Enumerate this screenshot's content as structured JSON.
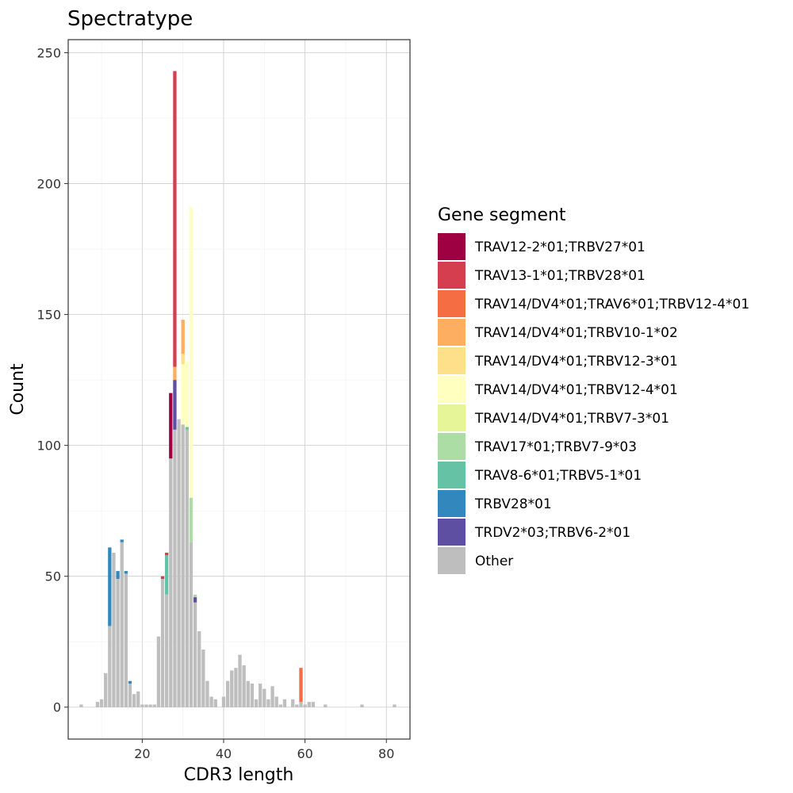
{
  "chart_data": {
    "type": "bar",
    "stacked": true,
    "title": "Spectratype",
    "xlabel": "CDR3 length",
    "ylabel": "Count",
    "xlim": [
      1.8,
      85.8
    ],
    "ylim": [
      -12.2,
      255
    ],
    "xticks": [
      20,
      40,
      60,
      80
    ],
    "yticks": [
      0,
      50,
      100,
      150,
      200,
      250
    ],
    "grid": true,
    "legend": {
      "title": "Gene segment",
      "position": "right",
      "entries": [
        {
          "name": "TRAV12-2*01;TRBV27*01",
          "color": "#9E0142"
        },
        {
          "name": "TRAV13-1*01;TRBV28*01",
          "color": "#D53E4F"
        },
        {
          "name": "TRAV14/DV4*01;TRAV6*01;TRBV12-4*01",
          "color": "#F46D43"
        },
        {
          "name": "TRAV14/DV4*01;TRBV10-1*02",
          "color": "#FDAE61"
        },
        {
          "name": "TRAV14/DV4*01;TRBV12-3*01",
          "color": "#FEE08B"
        },
        {
          "name": "TRAV14/DV4*01;TRBV12-4*01",
          "color": "#FFFFBF"
        },
        {
          "name": "TRAV14/DV4*01;TRBV7-3*01",
          "color": "#E6F598"
        },
        {
          "name": "TRAV17*01;TRBV7-9*03",
          "color": "#ABDDA4"
        },
        {
          "name": "TRAV8-6*01;TRBV5-1*01",
          "color": "#66C2A5"
        },
        {
          "name": "TRBV28*01",
          "color": "#3288BD"
        },
        {
          "name": "TRDV2*03;TRBV6-2*01",
          "color": "#5E4FA2"
        },
        {
          "name": "Other",
          "color": "#BEBEBE"
        }
      ]
    },
    "series_order": [
      "Other",
      "TRDV2*03;TRBV6-2*01",
      "TRBV28*01",
      "TRAV8-6*01;TRBV5-1*01",
      "TRAV17*01;TRBV7-9*03",
      "TRAV14/DV4*01;TRBV7-3*01",
      "TRAV14/DV4*01;TRBV12-4*01",
      "TRAV14/DV4*01;TRBV12-3*01",
      "TRAV14/DV4*01;TRBV10-1*02",
      "TRAV14/DV4*01;TRAV6*01;TRBV12-4*01",
      "TRAV13-1*01;TRBV28*01",
      "TRAV12-2*01;TRBV27*01"
    ],
    "bars": [
      {
        "x": 5,
        "segments": {
          "Other": 1
        }
      },
      {
        "x": 9,
        "segments": {
          "Other": 2
        }
      },
      {
        "x": 10,
        "segments": {
          "Other": 3
        }
      },
      {
        "x": 11,
        "segments": {
          "Other": 13
        }
      },
      {
        "x": 12,
        "segments": {
          "Other": 31,
          "TRBV28*01": 30
        }
      },
      {
        "x": 13,
        "segments": {
          "Other": 59
        }
      },
      {
        "x": 14,
        "segments": {
          "Other": 49,
          "TRBV28*01": 3
        }
      },
      {
        "x": 15,
        "segments": {
          "Other": 63,
          "TRBV28*01": 1
        }
      },
      {
        "x": 16,
        "segments": {
          "Other": 51,
          "TRBV28*01": 1
        }
      },
      {
        "x": 17,
        "segments": {
          "Other": 9,
          "TRBV28*01": 1
        }
      },
      {
        "x": 18,
        "segments": {
          "Other": 5
        }
      },
      {
        "x": 19,
        "segments": {
          "Other": 6
        }
      },
      {
        "x": 20,
        "segments": {
          "Other": 1
        }
      },
      {
        "x": 21,
        "segments": {
          "Other": 1
        }
      },
      {
        "x": 22,
        "segments": {
          "Other": 1
        }
      },
      {
        "x": 23,
        "segments": {
          "Other": 1
        }
      },
      {
        "x": 24,
        "segments": {
          "Other": 27
        }
      },
      {
        "x": 25,
        "segments": {
          "Other": 49,
          "TRAV13-1*01;TRBV28*01": 1
        }
      },
      {
        "x": 26,
        "segments": {
          "Other": 43,
          "TRAV8-6*01;TRBV5-1*01": 15,
          "TRAV13-1*01;TRBV28*01": 1
        }
      },
      {
        "x": 27,
        "segments": {
          "Other": 95,
          "TRAV12-2*01;TRBV27*01": 25
        }
      },
      {
        "x": 28,
        "segments": {
          "Other": 106,
          "TRDV2*03;TRBV6-2*01": 19,
          "TRAV14/DV4*01;TRBV10-1*02": 5,
          "TRAV13-1*01;TRBV28*01": 113
        }
      },
      {
        "x": 29,
        "segments": {
          "Other": 110
        }
      },
      {
        "x": 30,
        "segments": {
          "Other": 108,
          "TRAV14/DV4*01;TRBV12-4*01": 23,
          "TRAV14/DV4*01;TRBV12-3*01": 4,
          "TRAV14/DV4*01;TRBV10-1*02": 13
        }
      },
      {
        "x": 31,
        "segments": {
          "Other": 106,
          "TRAV8-6*01;TRBV5-1*01": 1,
          "TRAV14/DV4*01;TRBV12-4*01": 25
        }
      },
      {
        "x": 32,
        "segments": {
          "Other": 63,
          "TRAV17*01;TRBV7-9*03": 17,
          "TRAV14/DV4*01;TRBV12-4*01": 111
        }
      },
      {
        "x": 33,
        "segments": {
          "Other": 40,
          "TRDV2*03;TRBV6-2*01": 2,
          "TRAV17*01;TRBV7-9*03": 1
        }
      },
      {
        "x": 34,
        "segments": {
          "Other": 29
        }
      },
      {
        "x": 35,
        "segments": {
          "Other": 22
        }
      },
      {
        "x": 36,
        "segments": {
          "Other": 10
        }
      },
      {
        "x": 37,
        "segments": {
          "Other": 4
        }
      },
      {
        "x": 38,
        "segments": {
          "Other": 3
        }
      },
      {
        "x": 40,
        "segments": {
          "Other": 4
        }
      },
      {
        "x": 41,
        "segments": {
          "Other": 10
        }
      },
      {
        "x": 42,
        "segments": {
          "Other": 14
        }
      },
      {
        "x": 43,
        "segments": {
          "Other": 15
        }
      },
      {
        "x": 44,
        "segments": {
          "Other": 20
        }
      },
      {
        "x": 45,
        "segments": {
          "Other": 16
        }
      },
      {
        "x": 46,
        "segments": {
          "Other": 10
        }
      },
      {
        "x": 47,
        "segments": {
          "Other": 9
        }
      },
      {
        "x": 48,
        "segments": {
          "Other": 3
        }
      },
      {
        "x": 49,
        "segments": {
          "Other": 9
        }
      },
      {
        "x": 50,
        "segments": {
          "Other": 7
        }
      },
      {
        "x": 51,
        "segments": {
          "Other": 3
        }
      },
      {
        "x": 52,
        "segments": {
          "Other": 8
        }
      },
      {
        "x": 53,
        "segments": {
          "Other": 4
        }
      },
      {
        "x": 54,
        "segments": {
          "Other": 1
        }
      },
      {
        "x": 55,
        "segments": {
          "Other": 3
        }
      },
      {
        "x": 57,
        "segments": {
          "Other": 3
        }
      },
      {
        "x": 58,
        "segments": {
          "Other": 1
        }
      },
      {
        "x": 59,
        "segments": {
          "Other": 2,
          "TRAV14/DV4*01;TRAV6*01;TRBV12-4*01": 13
        }
      },
      {
        "x": 60,
        "segments": {
          "Other": 1
        }
      },
      {
        "x": 61,
        "segments": {
          "Other": 2
        }
      },
      {
        "x": 62,
        "segments": {
          "Other": 2
        }
      },
      {
        "x": 65,
        "segments": {
          "Other": 1
        }
      },
      {
        "x": 74,
        "segments": {
          "Other": 1
        }
      },
      {
        "x": 82,
        "segments": {
          "Other": 1
        }
      }
    ]
  }
}
